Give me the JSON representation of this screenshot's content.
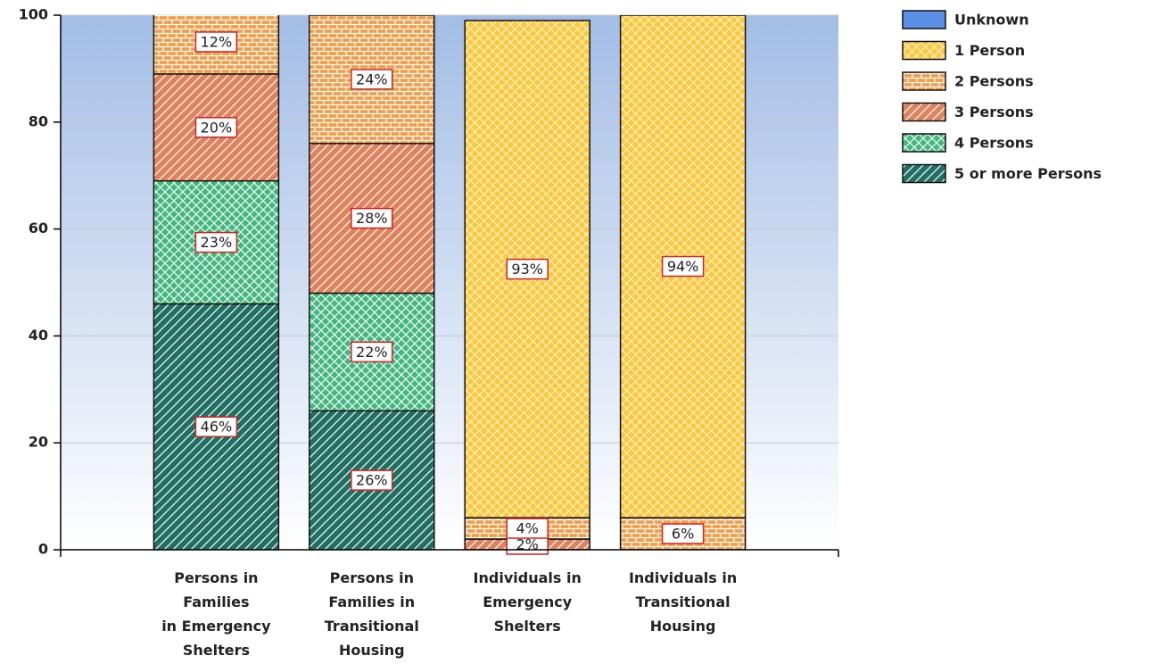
{
  "chart_data": {
    "type": "stacked_bar",
    "categories": [
      "Persons in\nFamilies\nin Emergency\nShelters",
      "Persons in\nFamilies in\nTransitional\nHousing",
      "Individuals in\nEmergency\nShelters",
      "Individuals in\nTransitional\nHousing"
    ],
    "series": [
      {
        "name": "5 or more Persons",
        "color": "#1f6f62",
        "pattern": "diagonal",
        "values": [
          46,
          26,
          0,
          0
        ],
        "value_labels": [
          "46%",
          "26%",
          null,
          null
        ]
      },
      {
        "name": "4 Persons",
        "color": "#3dba7c",
        "pattern": "cross",
        "values": [
          23,
          22,
          0,
          0
        ],
        "value_labels": [
          "23%",
          "22%",
          null,
          null
        ]
      },
      {
        "name": "3 Persons",
        "color": "#e0825c",
        "pattern": "diagonal",
        "values": [
          20,
          28,
          2,
          0
        ],
        "value_labels": [
          "20%",
          "28%",
          "2%",
          null
        ]
      },
      {
        "name": "2 Persons",
        "color": "#f59c48",
        "pattern": "brick",
        "values": [
          12,
          24,
          4,
          6
        ],
        "value_labels": [
          "12%",
          "24%",
          "4%",
          "6%"
        ]
      },
      {
        "name": "1 Person",
        "color": "#ffc83a",
        "pattern": "lattice",
        "values": [
          0,
          0,
          93,
          94
        ],
        "value_labels": [
          null,
          null,
          "93%",
          "94%"
        ]
      },
      {
        "name": "Unknown",
        "color": "#5b8fe6",
        "pattern": "solid",
        "values": [
          0,
          0,
          0,
          0
        ],
        "value_labels": [
          null,
          null,
          null,
          null
        ]
      }
    ],
    "legend_order": "reverse",
    "ylim": [
      0,
      100
    ],
    "yticks": [
      0,
      20,
      40,
      60,
      80,
      100
    ],
    "grid": true
  }
}
